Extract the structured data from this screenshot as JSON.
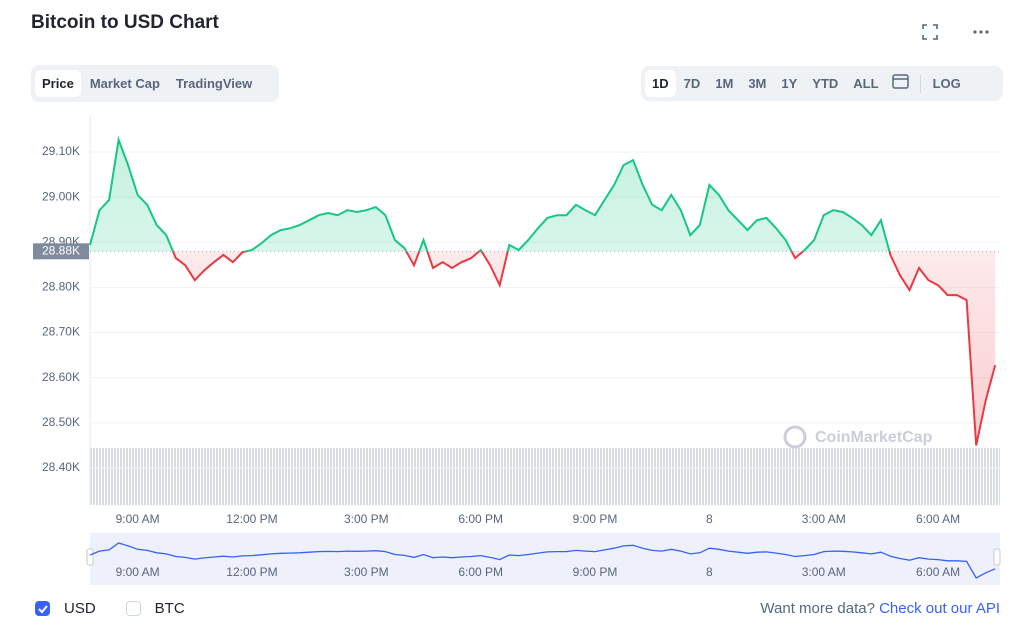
{
  "header": {
    "title": "Bitcoin to USD Chart"
  },
  "tabs": [
    {
      "label": "Price",
      "selected": true
    },
    {
      "label": "Market Cap",
      "selected": false
    },
    {
      "label": "TradingView",
      "selected": false
    }
  ],
  "ranges": [
    {
      "label": "1D",
      "selected": true
    },
    {
      "label": "7D",
      "selected": false
    },
    {
      "label": "1M",
      "selected": false
    },
    {
      "label": "3M",
      "selected": false
    },
    {
      "label": "1Y",
      "selected": false
    },
    {
      "label": "YTD",
      "selected": false
    },
    {
      "label": "ALL",
      "selected": false
    }
  ],
  "log_button": "LOG",
  "watermark": "CoinMarketCap",
  "currencies": [
    {
      "label": "USD",
      "checked": true
    },
    {
      "label": "BTC",
      "checked": false
    }
  ],
  "footer": {
    "prompt": "Want more data?",
    "link": "Check out our API"
  },
  "chart_data": {
    "type": "line",
    "categories": [
      null,
      null,
      null,
      null,
      null,
      "9:00 AM",
      null,
      null,
      null,
      null,
      null,
      null,
      null,
      null,
      null,
      null,
      null,
      "12:00 PM",
      null,
      null,
      null,
      null,
      null,
      null,
      null,
      null,
      null,
      null,
      null,
      "3:00 PM",
      null,
      null,
      null,
      null,
      null,
      null,
      null,
      null,
      null,
      null,
      null,
      "6:00 PM",
      null,
      null,
      null,
      null,
      null,
      null,
      null,
      null,
      null,
      null,
      null,
      "9:00 PM",
      null,
      null,
      null,
      null,
      null,
      null,
      null,
      null,
      null,
      null,
      null,
      "8",
      null,
      null,
      null,
      null,
      null,
      null,
      null,
      null,
      null,
      null,
      null,
      "3:00 AM",
      null,
      null,
      null,
      null,
      null,
      null,
      null,
      null,
      null,
      null,
      null,
      "6:00 AM",
      null,
      null,
      null,
      null,
      null,
      null
    ],
    "values": [
      28894,
      28971,
      28994,
      29127,
      29071,
      29005,
      28983,
      28938,
      28916,
      28865,
      28849,
      28816,
      28838,
      28856,
      28872,
      28856,
      28878,
      28883,
      28898,
      28916,
      28927,
      28931,
      28938,
      28949,
      28960,
      28965,
      28960,
      28971,
      28967,
      28971,
      28978,
      28960,
      28905,
      28887,
      28849,
      28905,
      28843,
      28856,
      28843,
      28856,
      28865,
      28883,
      28849,
      28805,
      28894,
      28883,
      28905,
      28931,
      28954,
      28960,
      28960,
      28983,
      28971,
      28960,
      28994,
      29027,
      29071,
      29082,
      29027,
      28983,
      28971,
      29005,
      28971,
      28916,
      28938,
      29027,
      29005,
      28971,
      28949,
      28927,
      28949,
      28954,
      28931,
      28905,
      28865,
      28883,
      28905,
      28960,
      28971,
      28967,
      28954,
      28938,
      28916,
      28949,
      28872,
      28827,
      28794,
      28843,
      28816,
      28805,
      28783,
      28783,
      28772,
      28450,
      28550,
      28628
    ],
    "baseline": {
      "value": 28880,
      "label": "28.88K"
    },
    "up_color": "#16c784",
    "down_color": "#ea3943",
    "navigator_color": "#3861fb",
    "ylim": [
      28318,
      29182
    ],
    "yticks": [
      {
        "value": 28400,
        "label": "28.40K"
      },
      {
        "value": 28500,
        "label": "28.50K"
      },
      {
        "value": 28600,
        "label": "28.60K"
      },
      {
        "value": 28700,
        "label": "28.70K"
      },
      {
        "value": 28800,
        "label": "28.80K"
      },
      {
        "value": 28900,
        "label": "28.90K"
      },
      {
        "value": 29000,
        "label": "29.00K"
      },
      {
        "value": 29100,
        "label": "29.10K"
      }
    ],
    "grid": true
  }
}
